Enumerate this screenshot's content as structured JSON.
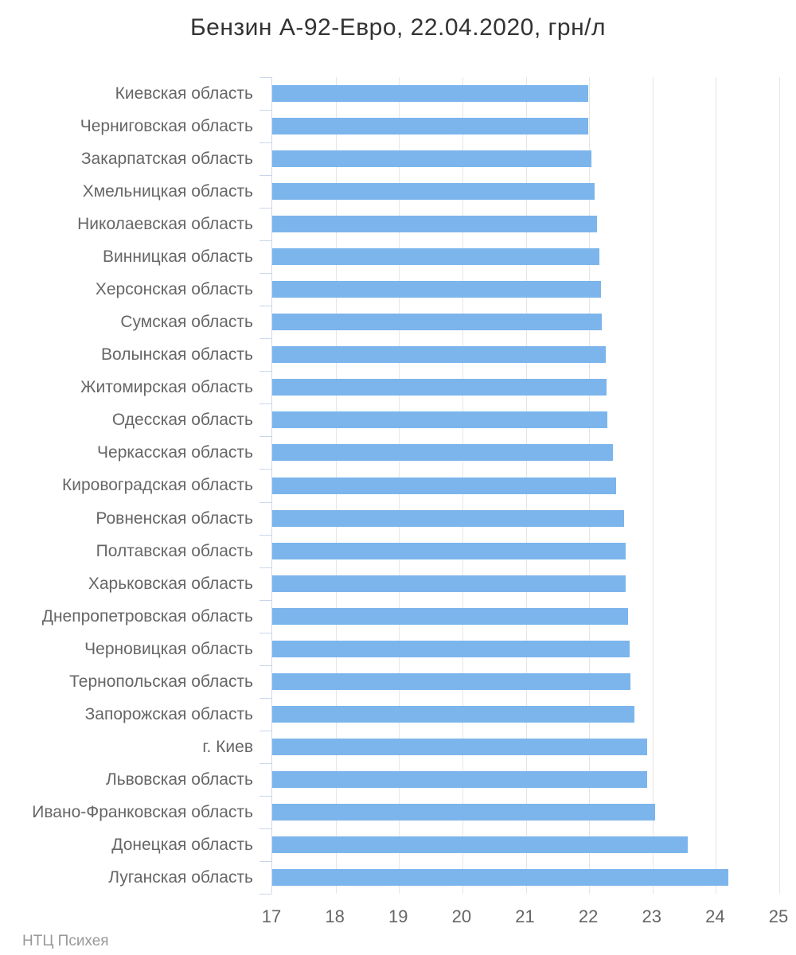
{
  "title": "Бензин А-92-Евро, 22.04.2020, грн/л",
  "footer": "НТЦ Психея",
  "chart_data": {
    "type": "bar",
    "orientation": "horizontal",
    "title": "Бензин А-92-Евро, 22.04.2020, грн/л",
    "xlabel": "",
    "ylabel": "",
    "xlim": [
      17,
      25
    ],
    "xticks": [
      17,
      18,
      19,
      20,
      21,
      22,
      23,
      24,
      25
    ],
    "grid": true,
    "legend": "none",
    "categories": [
      "Киевская область",
      "Черниговская область",
      "Закарпатская область",
      "Хмельницкая область",
      "Николаевская область",
      "Винницкая область",
      "Херсонская область",
      "Сумская область",
      "Волынская область",
      "Житомирская область",
      "Одесская область",
      "Черкасская область",
      "Кировоградская область",
      "Ровненская область",
      "Полтавская область",
      "Харьковская область",
      "Днепропетровская область",
      "Черновицкая область",
      "Тернопольская область",
      "Запорожская область",
      "г. Киев",
      "Львовская область",
      "Ивано-Франковская область",
      "Донецкая область",
      "Луганская область"
    ],
    "values": [
      21.99,
      21.99,
      22.04,
      22.09,
      22.13,
      22.16,
      22.19,
      22.2,
      22.26,
      22.27,
      22.29,
      22.37,
      22.43,
      22.55,
      22.57,
      22.57,
      22.62,
      22.64,
      22.65,
      22.72,
      22.91,
      22.92,
      23.04,
      23.56,
      24.19
    ],
    "colors": {
      "bar": "#7cb5ec",
      "gridline": "#e6e6e6",
      "axis_line": "#ccd6eb",
      "labels": "#666666",
      "title": "#333333",
      "credits": "#999999"
    }
  }
}
